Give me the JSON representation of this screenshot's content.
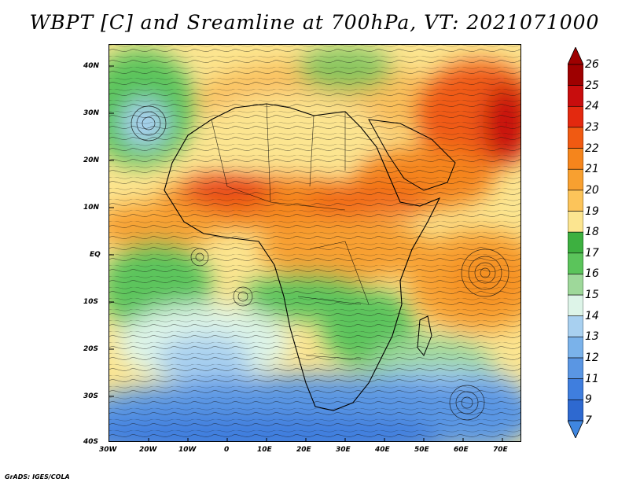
{
  "title": "WBPT [C] and Sreamline at 700hPa, VT: 2021071000",
  "credit": "GrADS: IGES/COLA",
  "map": {
    "lon_labels": [
      "30W",
      "20W",
      "10W",
      "0",
      "10E",
      "20E",
      "30E",
      "40E",
      "50E",
      "60E",
      "70E"
    ],
    "lat_labels": [
      "40N",
      "30N",
      "20N",
      "10N",
      "EQ",
      "10S",
      "20S",
      "30S",
      "40S"
    ],
    "lon_range": [
      -30,
      75
    ],
    "lat_range": [
      -40,
      44
    ]
  },
  "colorbar": {
    "labels": [
      "26",
      "25",
      "24",
      "23",
      "22",
      "21",
      "20",
      "19",
      "18",
      "17",
      "16",
      "15",
      "14",
      "13",
      "12",
      "11",
      "9",
      "7"
    ],
    "colors": [
      "#9e0000",
      "#c80d0d",
      "#e3290f",
      "#f05a12",
      "#f5851c",
      "#f8a030",
      "#fcc45a",
      "#fce590",
      "#3db040",
      "#5bc45b",
      "#9ed89a",
      "#ddf4e8",
      "#a8d0f0",
      "#7ab2ea",
      "#5a96e3",
      "#3f7ede",
      "#2e69d0"
    ],
    "arrow_top_color": "#9e0000",
    "arrow_bottom_color": "#3f86e0"
  }
}
